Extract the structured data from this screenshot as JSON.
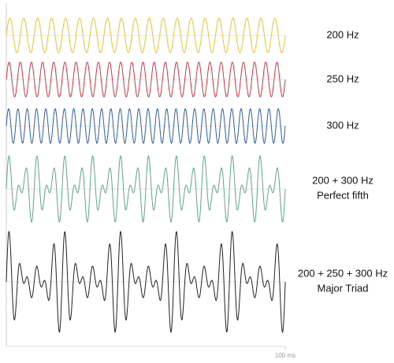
{
  "chart_data": {
    "type": "waveform",
    "xlim": [
      0,
      100
    ],
    "xticks": [
      {
        "value": 100,
        "label": "100 ms"
      }
    ],
    "series": [
      {
        "name": "200 Hz",
        "color": "#f2c12e",
        "frequencies": [
          200
        ]
      },
      {
        "name": "250 Hz",
        "color": "#e0313c",
        "frequencies": [
          250
        ]
      },
      {
        "name": "300 Hz",
        "color": "#2d5fae",
        "frequencies": [
          300
        ]
      },
      {
        "name": "200 + 300 Hz",
        "subtitle": "Perfect fifth",
        "color": "#5fa88c",
        "frequencies": [
          200,
          300
        ]
      },
      {
        "name": "200 + 250 + 300 Hz",
        "subtitle": "Major Triad",
        "color": "#222222",
        "frequencies": [
          200,
          250,
          300
        ]
      }
    ]
  }
}
